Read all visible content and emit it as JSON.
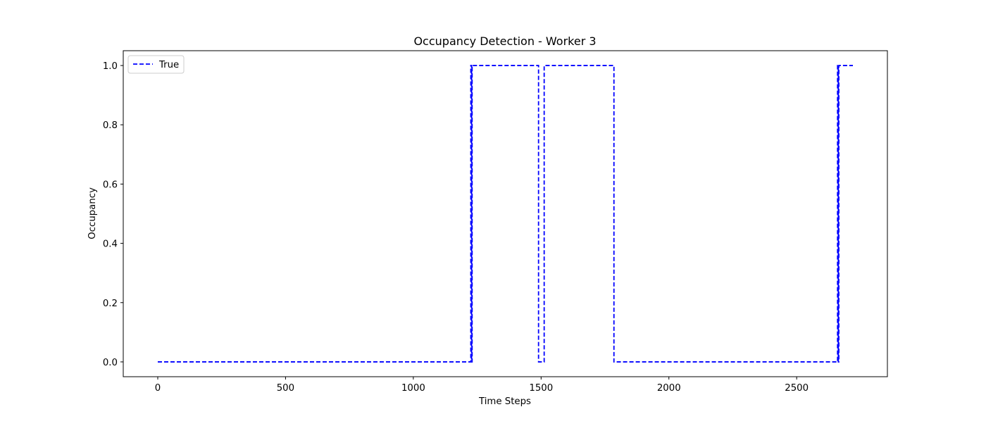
{
  "chart_data": {
    "type": "line",
    "title": "Occupancy Detection - Worker 3",
    "xlabel": "Time Steps",
    "ylabel": "Occupancy",
    "xlim": [
      -135,
      2855
    ],
    "ylim": [
      -0.05,
      1.05
    ],
    "xticks": [
      0,
      500,
      1000,
      1500,
      2000,
      2500
    ],
    "yticks": [
      0.0,
      0.2,
      0.4,
      0.6,
      0.8,
      1.0
    ],
    "xtick_labels": [
      "0",
      "500",
      "1000",
      "1500",
      "2000",
      "2500"
    ],
    "ytick_labels": [
      "0.0",
      "0.2",
      "0.4",
      "0.6",
      "0.8",
      "1.0"
    ],
    "grid": false,
    "legend_position": "top-left",
    "series": [
      {
        "name": "True",
        "color": "#0000ff",
        "linestyle": "dashed",
        "drawstyle": "steps",
        "x": [
          0,
          1225,
          1225,
          1228,
          1228,
          1230,
          1230,
          1490,
          1490,
          1512,
          1512,
          1785,
          1785,
          2660,
          2660,
          2663,
          2663,
          2665,
          2665,
          2720
        ],
        "y": [
          0,
          0,
          1,
          1,
          0,
          0,
          1,
          1,
          0,
          0,
          1,
          1,
          0,
          0,
          1,
          1,
          0,
          0,
          1,
          1
        ]
      }
    ]
  }
}
